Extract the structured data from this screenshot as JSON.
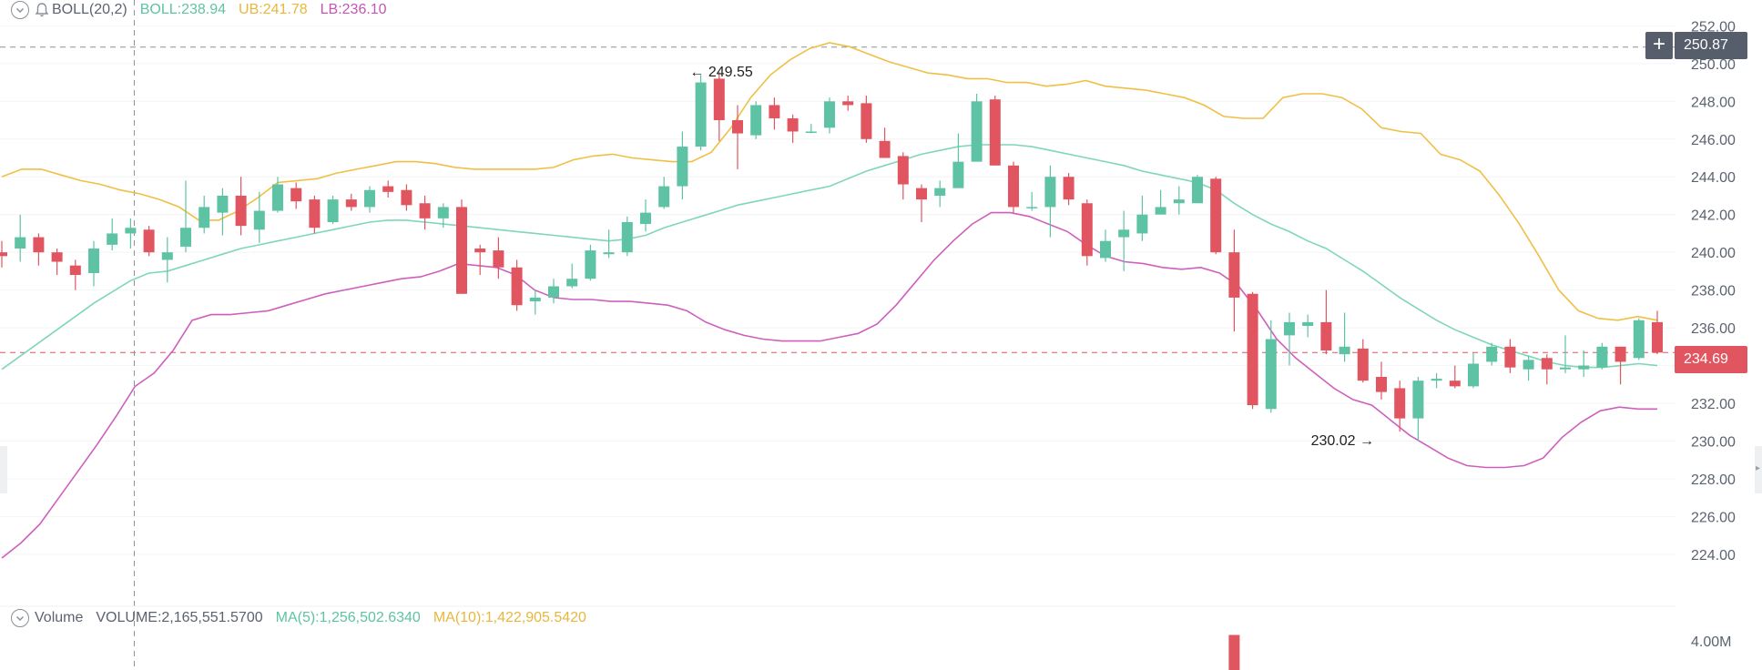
{
  "boll_legend": {
    "indicator": "BOLL(20,2)",
    "boll": "BOLL:238.94",
    "ub": "UB:241.78",
    "lb": "LB:236.10"
  },
  "volume_legend": {
    "name": "Volume",
    "volume": "VOLUME:2,165,551.5700",
    "ma5": "MA(5):1,256,502.6340",
    "ma10": "MA(10):1,422,905.5420"
  },
  "crosshair_price": "250.87",
  "last_price": "234.69",
  "colors": {
    "up": "#5ec3a4",
    "down": "#e05560",
    "mid": "#7fd6b8",
    "ub": "#f0bf45",
    "lb": "#cf5fbd",
    "crosshair_tag": "#565d6b",
    "last_tag": "#e05560"
  },
  "chart_data": {
    "type": "candlestick",
    "y_axis_ticks": [
      "252.00",
      "250.00",
      "248.00",
      "246.00",
      "244.00",
      "242.00",
      "240.00",
      "238.00",
      "236.00",
      "234.00",
      "232.00",
      "230.00",
      "228.00",
      "226.00",
      "224.00"
    ],
    "volume_axis_ticks": [
      "4.00M"
    ],
    "ylim": [
      222.5,
      252.5
    ],
    "crosshair_value": 250.87,
    "last_value": 234.69,
    "annotations": [
      {
        "text": "249.55",
        "index": 37,
        "value": 249.55,
        "side": "right"
      },
      {
        "text": "230.02",
        "index": 75,
        "value": 230.02,
        "side": "left"
      }
    ],
    "candles": [
      [
        240.0,
        239.8,
        240.6,
        239.2
      ],
      [
        240.2,
        240.8,
        242.0,
        239.5
      ],
      [
        240.8,
        240.0,
        241.0,
        239.3
      ],
      [
        240.0,
        239.5,
        240.2,
        238.8
      ],
      [
        239.3,
        238.8,
        239.6,
        238.0
      ],
      [
        238.9,
        240.2,
        240.6,
        238.2
      ],
      [
        240.4,
        241.0,
        241.8,
        240.1
      ],
      [
        241.0,
        241.3,
        241.8,
        240.2
      ],
      [
        241.2,
        240.0,
        241.4,
        239.8
      ],
      [
        239.6,
        240.0,
        240.8,
        238.4
      ],
      [
        240.3,
        241.3,
        243.8,
        240.0
      ],
      [
        241.3,
        242.4,
        243.0,
        241.0
      ],
      [
        242.1,
        243.0,
        243.4,
        240.9
      ],
      [
        243.0,
        241.4,
        244.0,
        240.9
      ],
      [
        241.2,
        242.2,
        243.2,
        240.5
      ],
      [
        242.2,
        243.6,
        244.0,
        242.1
      ],
      [
        243.4,
        242.7,
        243.7,
        242.3
      ],
      [
        242.8,
        241.3,
        243.0,
        241.0
      ],
      [
        241.6,
        242.8,
        243.0,
        241.5
      ],
      [
        242.8,
        242.4,
        243.1,
        242.2
      ],
      [
        242.4,
        243.3,
        243.5,
        242.1
      ],
      [
        243.5,
        243.2,
        243.8,
        242.9
      ],
      [
        243.3,
        242.5,
        243.6,
        242.2
      ],
      [
        242.6,
        241.8,
        243.0,
        241.2
      ],
      [
        241.8,
        242.4,
        242.6,
        241.3
      ],
      [
        242.4,
        237.8,
        242.8,
        237.8
      ],
      [
        240.2,
        240.0,
        240.4,
        238.8
      ],
      [
        240.1,
        239.2,
        240.8,
        238.6
      ],
      [
        239.2,
        237.2,
        239.6,
        236.9
      ],
      [
        237.4,
        237.6,
        238.0,
        236.7
      ],
      [
        237.6,
        238.2,
        238.6,
        237.3
      ],
      [
        238.2,
        238.6,
        239.4,
        238.1
      ],
      [
        238.6,
        240.1,
        240.4,
        238.5
      ],
      [
        239.9,
        240.0,
        241.2,
        239.7
      ],
      [
        240.0,
        241.6,
        241.9,
        239.8
      ],
      [
        241.5,
        242.1,
        242.8,
        241.1
      ],
      [
        242.4,
        243.5,
        244.0,
        242.3
      ],
      [
        243.5,
        245.6,
        246.4,
        242.8
      ],
      [
        245.6,
        249.0,
        249.4,
        245.4
      ],
      [
        249.2,
        247.0,
        249.55,
        245.9
      ],
      [
        247.0,
        246.3,
        247.8,
        244.4
      ],
      [
        246.2,
        247.8,
        248.0,
        246.0
      ],
      [
        247.8,
        247.1,
        248.2,
        246.5
      ],
      [
        247.1,
        246.4,
        247.3,
        245.8
      ],
      [
        246.4,
        246.4,
        246.8,
        246.3
      ],
      [
        246.6,
        248.0,
        248.2,
        246.3
      ],
      [
        248.0,
        247.8,
        248.3,
        247.5
      ],
      [
        247.9,
        246.0,
        248.3,
        245.8
      ],
      [
        245.9,
        245.0,
        246.6,
        245.0
      ],
      [
        245.1,
        243.6,
        245.3,
        242.8
      ],
      [
        243.4,
        242.8,
        243.6,
        241.6
      ],
      [
        243.0,
        243.4,
        243.8,
        242.4
      ],
      [
        243.4,
        244.8,
        246.3,
        243.6
      ],
      [
        244.8,
        248.0,
        248.4,
        245.1
      ],
      [
        248.1,
        244.6,
        248.3,
        244.6
      ],
      [
        244.6,
        242.4,
        244.8,
        242.1
      ],
      [
        242.4,
        242.4,
        243.2,
        242.2
      ],
      [
        242.4,
        244.0,
        244.6,
        240.8
      ],
      [
        244.0,
        242.8,
        244.2,
        242.5
      ],
      [
        242.6,
        239.8,
        242.8,
        239.3
      ],
      [
        239.7,
        240.6,
        241.2,
        239.5
      ],
      [
        240.8,
        241.2,
        242.2,
        239.0
      ],
      [
        241.0,
        242.0,
        243.0,
        240.6
      ],
      [
        242.0,
        242.4,
        243.3,
        242.1
      ],
      [
        242.6,
        242.8,
        243.5,
        242.0
      ],
      [
        242.6,
        244.0,
        244.1,
        242.6
      ],
      [
        243.9,
        240.0,
        244.0,
        239.9
      ],
      [
        240.0,
        237.6,
        241.2,
        235.8
      ],
      [
        237.8,
        231.9,
        237.9,
        231.7
      ],
      [
        231.7,
        235.4,
        236.4,
        231.5
      ],
      [
        235.6,
        236.3,
        236.8,
        234.0
      ],
      [
        236.1,
        236.3,
        236.7,
        235.5
      ],
      [
        236.3,
        234.8,
        238.0,
        234.6
      ],
      [
        234.6,
        235.0,
        236.8,
        234.2
      ],
      [
        234.9,
        233.2,
        235.4,
        233.1
      ],
      [
        233.4,
        232.6,
        234.2,
        232.2
      ],
      [
        232.8,
        231.2,
        233.2,
        230.5
      ],
      [
        231.2,
        233.2,
        233.4,
        230.02
      ],
      [
        233.2,
        233.3,
        233.6,
        232.8
      ],
      [
        233.2,
        232.9,
        234.0,
        232.8
      ],
      [
        232.9,
        234.1,
        234.7,
        232.8
      ],
      [
        234.2,
        235.0,
        235.2,
        234.0
      ],
      [
        235.0,
        233.9,
        235.4,
        233.6
      ],
      [
        233.8,
        234.3,
        234.5,
        233.2
      ],
      [
        234.4,
        233.8,
        234.6,
        233.0
      ],
      [
        233.8,
        233.9,
        235.6,
        233.6
      ],
      [
        233.8,
        234.0,
        234.8,
        233.4
      ],
      [
        233.9,
        235.0,
        235.2,
        233.8
      ],
      [
        235.0,
        234.2,
        235.0,
        233.0
      ],
      [
        234.4,
        236.4,
        236.5,
        234.3
      ],
      [
        236.3,
        234.69,
        236.9,
        234.6
      ]
    ],
    "series": [
      {
        "name": "BOLL",
        "values": [
          233.8,
          234.5,
          235.2,
          235.9,
          236.6,
          237.3,
          237.9,
          238.5,
          238.9,
          239.0,
          239.3,
          239.6,
          239.9,
          240.2,
          240.4,
          240.6,
          240.8,
          241.0,
          241.2,
          241.4,
          241.6,
          241.7,
          241.7,
          241.6,
          241.5,
          241.4,
          241.3,
          241.2,
          241.1,
          241.0,
          240.9,
          240.8,
          240.7,
          240.6,
          240.7,
          240.9,
          241.3,
          241.6,
          241.9,
          242.2,
          242.5,
          242.7,
          242.9,
          243.1,
          243.3,
          243.5,
          243.9,
          244.3,
          244.6,
          244.9,
          245.2,
          245.4,
          245.6,
          245.7,
          245.7,
          245.7,
          245.6,
          245.4,
          245.2,
          245.0,
          244.8,
          244.6,
          244.3,
          244.1,
          243.9,
          243.7,
          243.3,
          242.6,
          242.0,
          241.5,
          241.1,
          240.6,
          240.2,
          239.6,
          239.0,
          238.3,
          237.6,
          237.0,
          236.4,
          235.9,
          235.5,
          235.1,
          234.8,
          234.5,
          234.2,
          234.0,
          233.9,
          233.9,
          234.0,
          234.1,
          234.0
        ]
      },
      {
        "name": "UB",
        "values": [
          244.0,
          244.4,
          244.4,
          244.1,
          243.8,
          243.6,
          243.3,
          243.1,
          242.8,
          242.4,
          241.7,
          241.7,
          242.2,
          242.9,
          243.7,
          243.8,
          243.9,
          244.2,
          244.4,
          244.6,
          244.8,
          244.8,
          244.7,
          244.5,
          244.4,
          244.4,
          244.4,
          244.4,
          244.5,
          244.9,
          245.1,
          245.2,
          245.0,
          244.9,
          244.8,
          244.8,
          245.3,
          246.6,
          248.2,
          249.4,
          250.2,
          250.8,
          251.1,
          250.9,
          250.5,
          250.1,
          249.8,
          249.5,
          249.4,
          249.2,
          249.2,
          249.0,
          249.0,
          248.8,
          248.9,
          249.1,
          248.8,
          248.7,
          248.6,
          248.4,
          248.2,
          247.8,
          247.2,
          247.1,
          247.1,
          248.2,
          248.4,
          248.4,
          248.2,
          247.6,
          246.6,
          246.4,
          246.3,
          245.2,
          244.9,
          244.3,
          243.0,
          241.5,
          239.8,
          238.0,
          236.9,
          236.5,
          236.4,
          236.6,
          236.4
        ]
      },
      {
        "name": "LB",
        "values": [
          223.8,
          224.6,
          225.6,
          227.0,
          228.4,
          229.8,
          231.3,
          232.9,
          233.6,
          234.8,
          236.4,
          236.7,
          236.7,
          236.8,
          236.9,
          237.2,
          237.5,
          237.8,
          238.0,
          238.2,
          238.4,
          238.6,
          238.7,
          239.0,
          239.4,
          239.3,
          239.2,
          238.8,
          238.0,
          237.6,
          237.5,
          237.5,
          237.4,
          237.4,
          237.3,
          237.2,
          236.9,
          236.3,
          235.9,
          235.6,
          235.4,
          235.3,
          235.3,
          235.3,
          235.5,
          235.7,
          236.2,
          237.2,
          238.4,
          239.6,
          240.6,
          241.5,
          242.1,
          242.1,
          241.9,
          241.5,
          241.1,
          240.4,
          239.8,
          239.5,
          239.4,
          239.2,
          239.1,
          239.2,
          238.9,
          238.2,
          236.9,
          235.4,
          234.4,
          233.6,
          232.8,
          232.2,
          231.9,
          231.1,
          230.3,
          229.7,
          229.1,
          228.7,
          228.6,
          228.6,
          228.7,
          229.1,
          230.2,
          231.0,
          231.6,
          231.8,
          231.7,
          231.7
        ]
      }
    ],
    "volume": [
      {
        "index": 67,
        "value": 4500000
      }
    ]
  }
}
